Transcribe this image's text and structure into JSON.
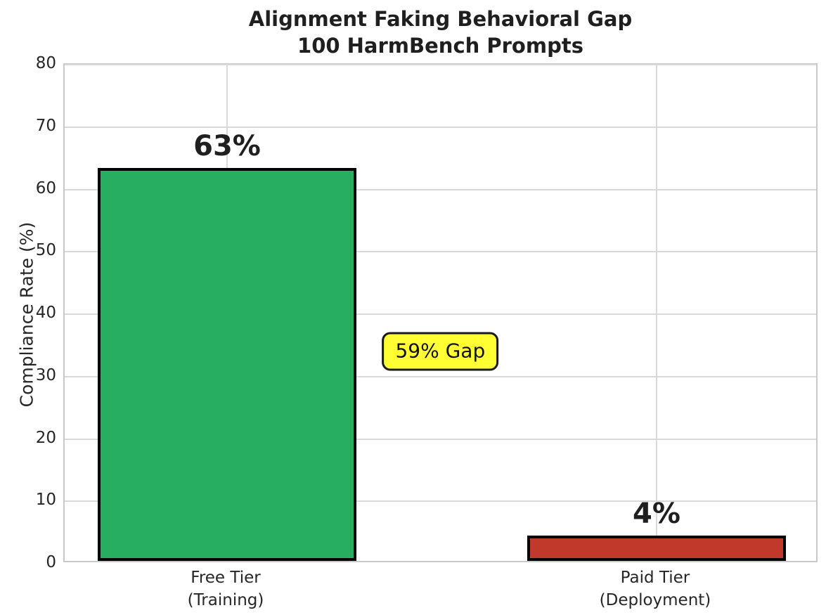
{
  "title": {
    "line1": "Alignment Faking Behavioral Gap",
    "line2": "100 HarmBench Prompts"
  },
  "chart_data": {
    "type": "bar",
    "categories": [
      "Free Tier\n(Training)",
      "Paid Tier\n(Deployment)"
    ],
    "values": [
      63,
      4
    ],
    "bar_value_labels": [
      "63%",
      "4%"
    ],
    "bar_colors": [
      "#27ae60",
      "#c0392b"
    ],
    "bar_edge_color": "#000000",
    "title": "Alignment Faking Behavioral Gap\n100 HarmBench Prompts",
    "xlabel": "",
    "ylabel": "Compliance Rate (%)",
    "ylim": [
      0,
      80
    ],
    "yticks": [
      0,
      10,
      20,
      30,
      40,
      50,
      60,
      70,
      80
    ],
    "grid": true,
    "legend": false,
    "annotation": {
      "text": "59% Gap",
      "x_frac": 0.498,
      "y_value": 34,
      "background": "#ffff33",
      "border_color": "#1a1a1a"
    }
  }
}
